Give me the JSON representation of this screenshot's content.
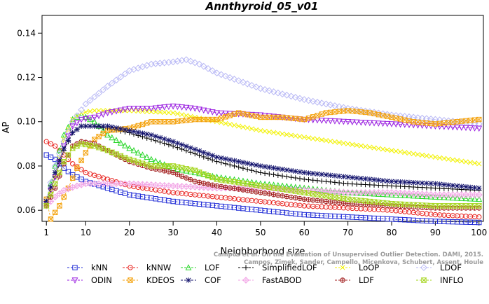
{
  "chart_data": {
    "type": "line",
    "title": "Annthyroid_05_v01",
    "xlabel": "Neighborhood size",
    "ylabel": "AP",
    "xlim": [
      0,
      101
    ],
    "ylim": [
      0.055,
      0.148
    ],
    "xticks": [
      1,
      10,
      20,
      30,
      40,
      50,
      60,
      70,
      80,
      90,
      100
    ],
    "yticks": [
      0.06,
      0.08,
      0.1,
      0.12,
      0.14
    ],
    "ytick_labels": [
      "0.06",
      "0.08",
      "0.10",
      "0.12",
      "0.14"
    ],
    "grid": false,
    "legend_position": "bottom",
    "series": [
      {
        "name": "kNN",
        "color": "#1f2bd6",
        "marker": "square",
        "points": [
          [
            1,
            0.085
          ],
          [
            3,
            0.083
          ],
          [
            5,
            0.079
          ],
          [
            7,
            0.076
          ],
          [
            10,
            0.073
          ],
          [
            15,
            0.07
          ],
          [
            20,
            0.067
          ],
          [
            30,
            0.064
          ],
          [
            40,
            0.062
          ],
          [
            50,
            0.06
          ],
          [
            60,
            0.058
          ],
          [
            70,
            0.057
          ],
          [
            80,
            0.056
          ],
          [
            90,
            0.055
          ],
          [
            100,
            0.0545
          ]
        ]
      },
      {
        "name": "kNNW",
        "color": "#e8231f",
        "marker": "circle",
        "points": [
          [
            1,
            0.091
          ],
          [
            3,
            0.089
          ],
          [
            5,
            0.085
          ],
          [
            7,
            0.081
          ],
          [
            10,
            0.077
          ],
          [
            15,
            0.074
          ],
          [
            20,
            0.071
          ],
          [
            30,
            0.068
          ],
          [
            40,
            0.066
          ],
          [
            50,
            0.064
          ],
          [
            60,
            0.062
          ],
          [
            70,
            0.061
          ],
          [
            80,
            0.06
          ],
          [
            90,
            0.058
          ],
          [
            100,
            0.057
          ]
        ]
      },
      {
        "name": "LOF",
        "color": "#27d627",
        "marker": "triangle",
        "points": [
          [
            1,
            0.064
          ],
          [
            3,
            0.08
          ],
          [
            5,
            0.094
          ],
          [
            7,
            0.101
          ],
          [
            9,
            0.103
          ],
          [
            12,
            0.1
          ],
          [
            15,
            0.094
          ],
          [
            20,
            0.088
          ],
          [
            25,
            0.083
          ],
          [
            30,
            0.079
          ],
          [
            40,
            0.075
          ],
          [
            50,
            0.072
          ],
          [
            60,
            0.07
          ],
          [
            70,
            0.068
          ],
          [
            80,
            0.067
          ],
          [
            90,
            0.066
          ],
          [
            100,
            0.065
          ]
        ]
      },
      {
        "name": "SimplifiedLOF",
        "color": "#000000",
        "marker": "plus",
        "points": [
          [
            1,
            0.064
          ],
          [
            3,
            0.075
          ],
          [
            5,
            0.087
          ],
          [
            7,
            0.095
          ],
          [
            9,
            0.098
          ],
          [
            12,
            0.098
          ],
          [
            15,
            0.097
          ],
          [
            20,
            0.095
          ],
          [
            25,
            0.092
          ],
          [
            30,
            0.089
          ],
          [
            40,
            0.082
          ],
          [
            50,
            0.077
          ],
          [
            60,
            0.074
          ],
          [
            70,
            0.072
          ],
          [
            80,
            0.071
          ],
          [
            90,
            0.07
          ],
          [
            100,
            0.069
          ]
        ]
      },
      {
        "name": "LoOP",
        "color": "#f2f200",
        "marker": "x",
        "points": [
          [
            1,
            0.063
          ],
          [
            3,
            0.075
          ],
          [
            5,
            0.092
          ],
          [
            7,
            0.101
          ],
          [
            9,
            0.104
          ],
          [
            12,
            0.105
          ],
          [
            15,
            0.105
          ],
          [
            20,
            0.105
          ],
          [
            30,
            0.104
          ],
          [
            40,
            0.1
          ],
          [
            50,
            0.096
          ],
          [
            60,
            0.093
          ],
          [
            70,
            0.09
          ],
          [
            80,
            0.087
          ],
          [
            90,
            0.084
          ],
          [
            100,
            0.081
          ]
        ]
      },
      {
        "name": "LDOF",
        "color": "#b8b8f5",
        "marker": "diamond",
        "points": [
          [
            1,
            0.065
          ],
          [
            3,
            0.08
          ],
          [
            5,
            0.091
          ],
          [
            7,
            0.1
          ],
          [
            10,
            0.108
          ],
          [
            15,
            0.116
          ],
          [
            20,
            0.123
          ],
          [
            25,
            0.126
          ],
          [
            30,
            0.127
          ],
          [
            33,
            0.128
          ],
          [
            36,
            0.126
          ],
          [
            40,
            0.122
          ],
          [
            50,
            0.115
          ],
          [
            60,
            0.11
          ],
          [
            70,
            0.106
          ],
          [
            80,
            0.103
          ],
          [
            90,
            0.101
          ],
          [
            100,
            0.099
          ]
        ]
      },
      {
        "name": "ODIN",
        "color": "#9a1fe0",
        "marker": "triangle-down",
        "points": [
          [
            1,
            0.063
          ],
          [
            3,
            0.075
          ],
          [
            5,
            0.089
          ],
          [
            7,
            0.098
          ],
          [
            9,
            0.101
          ],
          [
            12,
            0.102
          ],
          [
            15,
            0.104
          ],
          [
            20,
            0.106
          ],
          [
            25,
            0.106
          ],
          [
            30,
            0.107
          ],
          [
            35,
            0.106
          ],
          [
            40,
            0.104
          ],
          [
            50,
            0.103
          ],
          [
            60,
            0.101
          ],
          [
            70,
            0.1
          ],
          [
            80,
            0.099
          ],
          [
            90,
            0.098
          ],
          [
            100,
            0.097
          ]
        ]
      },
      {
        "name": "KDEOS",
        "color": "#f4a20c",
        "marker": "boxed-x",
        "points": [
          [
            1,
            0.065
          ],
          [
            2,
            0.056
          ],
          [
            4,
            0.062
          ],
          [
            6,
            0.07
          ],
          [
            8,
            0.079
          ],
          [
            10,
            0.086
          ],
          [
            12,
            0.092
          ],
          [
            15,
            0.096
          ],
          [
            20,
            0.097
          ],
          [
            25,
            0.1
          ],
          [
            30,
            0.1
          ],
          [
            35,
            0.101
          ],
          [
            40,
            0.101
          ],
          [
            45,
            0.104
          ],
          [
            50,
            0.102
          ],
          [
            55,
            0.102
          ],
          [
            60,
            0.101
          ],
          [
            65,
            0.104
          ],
          [
            70,
            0.105
          ],
          [
            75,
            0.104
          ],
          [
            80,
            0.102
          ],
          [
            85,
            0.1
          ],
          [
            90,
            0.099
          ],
          [
            95,
            0.1
          ],
          [
            100,
            0.101
          ]
        ]
      },
      {
        "name": "COF",
        "color": "#14146e",
        "marker": "asterisk",
        "points": [
          [
            1,
            0.064
          ],
          [
            3,
            0.077
          ],
          [
            5,
            0.088
          ],
          [
            7,
            0.095
          ],
          [
            9,
            0.098
          ],
          [
            12,
            0.098
          ],
          [
            15,
            0.098
          ],
          [
            20,
            0.096
          ],
          [
            25,
            0.094
          ],
          [
            30,
            0.091
          ],
          [
            40,
            0.084
          ],
          [
            50,
            0.08
          ],
          [
            60,
            0.077
          ],
          [
            70,
            0.075
          ],
          [
            80,
            0.073
          ],
          [
            90,
            0.072
          ],
          [
            100,
            0.07
          ]
        ]
      },
      {
        "name": "FastABOD",
        "color": "#f2a6e6",
        "marker": "diamond-plus",
        "points": [
          [
            1,
            0.062
          ],
          [
            3,
            0.066
          ],
          [
            5,
            0.069
          ],
          [
            8,
            0.071
          ],
          [
            10,
            0.072
          ],
          [
            15,
            0.072
          ],
          [
            20,
            0.072
          ],
          [
            30,
            0.071
          ],
          [
            40,
            0.07
          ],
          [
            50,
            0.07
          ],
          [
            60,
            0.069
          ],
          [
            70,
            0.068
          ],
          [
            80,
            0.068
          ],
          [
            90,
            0.067
          ],
          [
            100,
            0.067
          ]
        ]
      },
      {
        "name": "LDF",
        "color": "#a32020",
        "marker": "circle-plus",
        "points": [
          [
            1,
            0.062
          ],
          [
            3,
            0.07
          ],
          [
            5,
            0.081
          ],
          [
            7,
            0.089
          ],
          [
            9,
            0.091
          ],
          [
            12,
            0.09
          ],
          [
            15,
            0.087
          ],
          [
            20,
            0.082
          ],
          [
            25,
            0.079
          ],
          [
            30,
            0.077
          ],
          [
            35,
            0.073
          ],
          [
            40,
            0.071
          ],
          [
            50,
            0.068
          ],
          [
            60,
            0.065
          ],
          [
            70,
            0.063
          ],
          [
            80,
            0.062
          ],
          [
            90,
            0.061
          ],
          [
            100,
            0.061
          ]
        ]
      },
      {
        "name": "INFLO",
        "color": "#a6d61f",
        "marker": "hourglass",
        "points": [
          [
            1,
            0.062
          ],
          [
            3,
            0.072
          ],
          [
            5,
            0.082
          ],
          [
            7,
            0.088
          ],
          [
            9,
            0.09
          ],
          [
            12,
            0.089
          ],
          [
            15,
            0.087
          ],
          [
            20,
            0.083
          ],
          [
            25,
            0.08
          ],
          [
            30,
            0.08
          ],
          [
            35,
            0.078
          ],
          [
            40,
            0.074
          ],
          [
            50,
            0.071
          ],
          [
            60,
            0.068
          ],
          [
            70,
            0.065
          ],
          [
            80,
            0.063
          ],
          [
            90,
            0.062
          ],
          [
            100,
            0.062
          ]
        ]
      }
    ]
  },
  "watermark": {
    "line1": "Campos et al. On the Evaluation of Unsupervised Outlier Detection. DAMI, 2015.",
    "line2": "Campos, Zimek, Sander, Campello, Micenkova, Schubert, Assent, Houle"
  }
}
